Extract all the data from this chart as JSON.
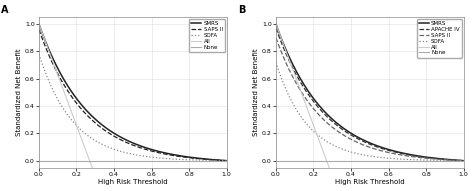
{
  "panel_A": {
    "label": "A",
    "xlabel": "High Risk Threshold",
    "ylabel": "Standardized Net Benefit",
    "xlim": [
      0.0,
      1.0
    ],
    "ylim": [
      -0.05,
      1.05
    ],
    "yticks": [
      0.0,
      0.2,
      0.4,
      0.6,
      0.8,
      1.0
    ],
    "xticks": [
      0.0,
      0.2,
      0.4,
      0.6,
      0.8,
      1.0
    ],
    "curves": [
      {
        "label": "SMRS",
        "linestyle": "-",
        "color": "#222222",
        "linewidth": 1.1,
        "steepness": 3.8,
        "scale": 1.0
      },
      {
        "label": "SAPS II",
        "linestyle": "--",
        "color": "#222222",
        "linewidth": 0.9,
        "steepness": 4.0,
        "scale": 0.96
      },
      {
        "label": "SOFA",
        "linestyle": ":",
        "color": "#888888",
        "linewidth": 0.9,
        "steepness": 5.5,
        "scale": 0.78
      },
      {
        "label": "All",
        "linestyle": "-",
        "color": "#cccccc",
        "linewidth": 0.8,
        "type": "all"
      },
      {
        "label": "None",
        "linestyle": "-",
        "color": "#aaaaaa",
        "linewidth": 0.8,
        "type": "none"
      }
    ]
  },
  "panel_B": {
    "label": "B",
    "xlabel": "High Risk Threshold",
    "ylabel": "Standardized Net Benefit",
    "xlim": [
      0.0,
      1.0
    ],
    "ylim": [
      -0.05,
      1.05
    ],
    "yticks": [
      0.0,
      0.2,
      0.4,
      0.6,
      0.8,
      1.0
    ],
    "xticks": [
      0.0,
      0.2,
      0.4,
      0.6,
      0.8,
      1.0
    ],
    "curves": [
      {
        "label": "SMRS",
        "linestyle": "-",
        "color": "#222222",
        "linewidth": 1.1,
        "steepness": 3.8,
        "scale": 1.0
      },
      {
        "label": "APACHE IV",
        "linestyle": "--",
        "color": "#333333",
        "linewidth": 0.9,
        "steepness": 3.9,
        "scale": 0.97
      },
      {
        "label": "SAPS II",
        "linestyle": "--",
        "color": "#666666",
        "linewidth": 0.9,
        "steepness": 4.2,
        "scale": 0.9
      },
      {
        "label": "SOFA",
        "linestyle": ":",
        "color": "#888888",
        "linewidth": 0.9,
        "steepness": 6.0,
        "scale": 0.72
      },
      {
        "label": "All",
        "linestyle": "-",
        "color": "#cccccc",
        "linewidth": 0.8,
        "type": "all"
      },
      {
        "label": "None",
        "linestyle": "-",
        "color": "#aaaaaa",
        "linewidth": 0.8,
        "type": "none"
      }
    ]
  },
  "background_color": "#ffffff",
  "grid_color": "#e0e0e0",
  "all_cross": 0.27
}
